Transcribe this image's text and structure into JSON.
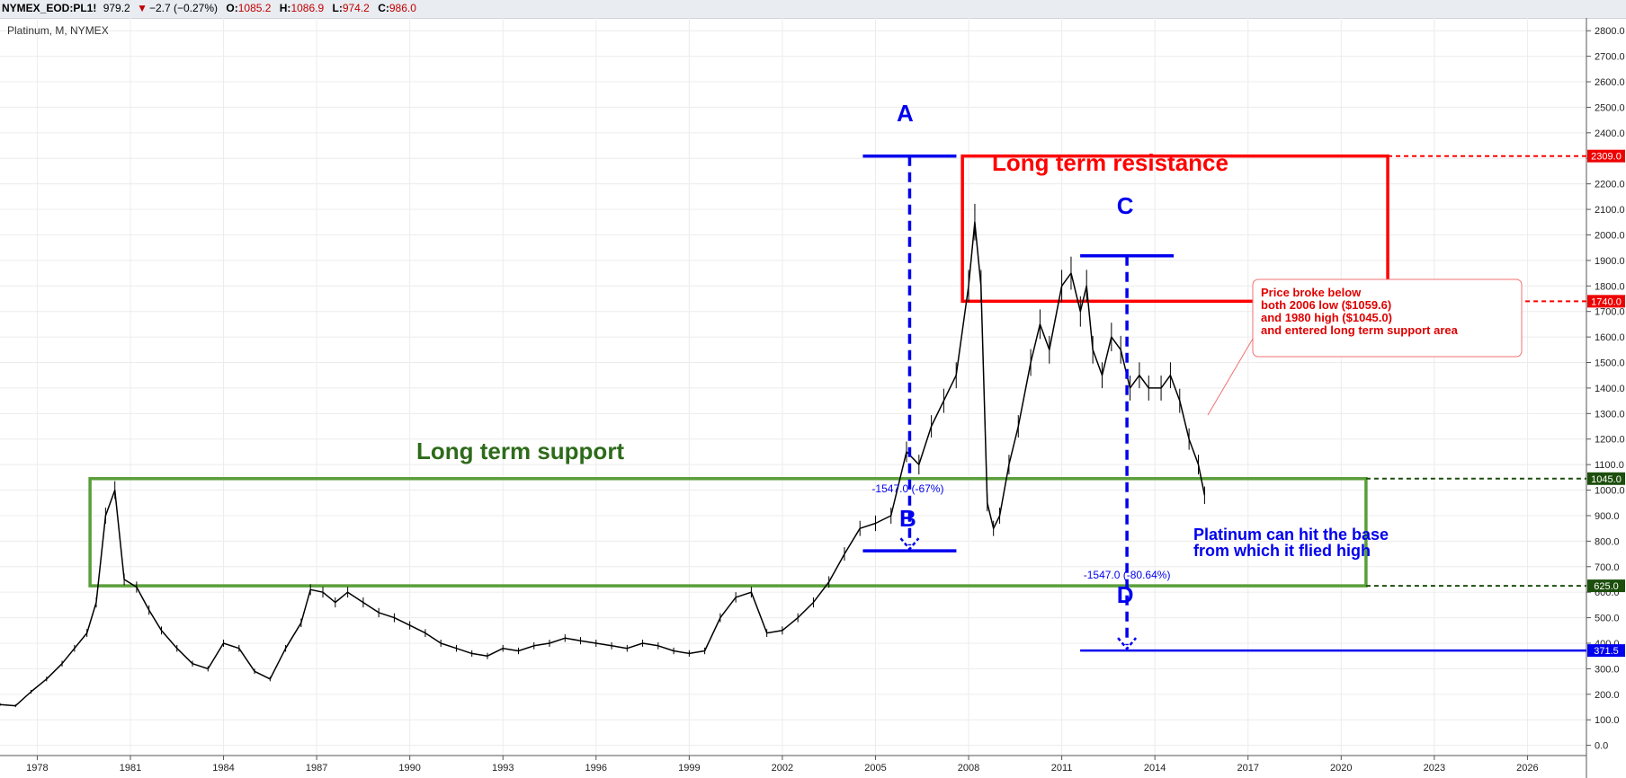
{
  "header": {
    "symbol": "NYMEX_EOD:PL1!",
    "last": "979.2",
    "change_arrow": "▼",
    "change": "−2.7 (−0.27%)",
    "open_label": "O:",
    "open": "1085.2",
    "high_label": "H:",
    "high": "1086.9",
    "low_label": "L:",
    "low": "974.2",
    "close_label": "C:",
    "close": "986.0"
  },
  "chart_data": {
    "type": "line",
    "title": "Platinum, M, NYMEX",
    "xlabel": "",
    "ylabel": "",
    "x_ticks": [
      "1978",
      "1981",
      "1984",
      "1987",
      "1990",
      "1993",
      "1996",
      "1999",
      "2002",
      "2005",
      "2008",
      "2011",
      "2014",
      "2017",
      "2020",
      "2023",
      "2026"
    ],
    "y_ticks": [
      "0.0",
      "100.0",
      "200.0",
      "300.0",
      "400.0",
      "500.0",
      "600.0",
      "700.0",
      "800.0",
      "900.0",
      "1000.0",
      "1100.0",
      "1200.0",
      "1300.0",
      "1400.0",
      "1500.0",
      "1600.0",
      "1700.0",
      "1800.0",
      "1900.0",
      "2000.0",
      "2100.0",
      "2200.0",
      "2300.0",
      "2400.0",
      "2500.0",
      "2600.0",
      "2700.0",
      "2800.0"
    ],
    "xlim": [
      1976.8,
      2027.9
    ],
    "ylim": [
      -40,
      2850
    ],
    "grid": true,
    "series": [
      {
        "x": [
          1976.8,
          1977.3,
          1977.8,
          1978.3,
          1978.8,
          1979.2,
          1979.6,
          1979.9,
          1980.2,
          1980.5,
          1980.8,
          1981.2,
          1981.6,
          1982.0,
          1982.5,
          1983.0,
          1983.5,
          1984.0,
          1984.5,
          1985.0,
          1985.5,
          1986.0,
          1986.5,
          1986.8,
          1987.2,
          1987.6,
          1988.0,
          1988.5,
          1989.0,
          1989.5,
          1990.0,
          1990.5,
          1991.0,
          1991.5,
          1992.0,
          1992.5,
          1993.0,
          1993.5,
          1994.0,
          1994.5,
          1995.0,
          1995.5,
          1996.0,
          1996.5,
          1997.0,
          1997.5,
          1998.0,
          1998.5,
          1999.0,
          1999.5,
          2000.0,
          2000.5,
          2001.0,
          2001.5,
          2002.0,
          2002.5,
          2003.0,
          2003.5,
          2004.0,
          2004.5,
          2005.0,
          2005.5,
          2006.0,
          2006.4,
          2006.8,
          2007.2,
          2007.6,
          2008.0,
          2008.2,
          2008.4,
          2008.6,
          2008.8,
          2009.0,
          2009.3,
          2009.6,
          2010.0,
          2010.3,
          2010.6,
          2011.0,
          2011.3,
          2011.6,
          2011.8,
          2012.0,
          2012.3,
          2012.6,
          2012.9,
          2013.2,
          2013.5,
          2013.8,
          2014.2,
          2014.5,
          2014.8,
          2015.1,
          2015.4,
          2015.6
        ],
        "values": [
          160,
          155,
          210,
          260,
          320,
          380,
          440,
          560,
          900,
          1000,
          650,
          620,
          530,
          450,
          380,
          320,
          300,
          400,
          380,
          290,
          260,
          380,
          480,
          610,
          600,
          560,
          600,
          560,
          520,
          500,
          470,
          440,
          400,
          380,
          360,
          350,
          380,
          370,
          390,
          400,
          420,
          410,
          400,
          390,
          380,
          400,
          390,
          370,
          360,
          370,
          500,
          580,
          600,
          440,
          450,
          500,
          560,
          640,
          750,
          850,
          870,
          900,
          1150,
          1100,
          1250,
          1350,
          1450,
          1800,
          2050,
          1800,
          950,
          850,
          900,
          1100,
          1250,
          1500,
          1650,
          1550,
          1800,
          1850,
          1700,
          1800,
          1550,
          1450,
          1600,
          1550,
          1400,
          1450,
          1400,
          1400,
          1450,
          1350,
          1200,
          1100,
          980
        ]
      }
    ],
    "annotations": {
      "resistance_label": "Long term resistance",
      "support_label": "Long term support",
      "point_a": "A",
      "point_b": "B",
      "point_c": "C",
      "point_d": "D",
      "measure_ab": "-1547.0 (-67%)",
      "measure_cd": "-1547.0 (-80.64%)",
      "callout_lines": [
        "Price broke below",
        "both 2006 low ($1059.6)",
        "and 1980 high ($1045.0)",
        "and entered long term support area"
      ],
      "base_note_lines": [
        "Platinum can hit the base",
        "from which it flied high"
      ]
    },
    "price_badges": {
      "resistance_high": "2309.0",
      "resistance_low": "1740.0",
      "support_high": "1045.0",
      "support_low": "625.0",
      "target": "371.5"
    },
    "levels": {
      "resistance": [
        1740,
        2309
      ],
      "resistance_x": [
        2007.8,
        2021.5
      ],
      "support": [
        625,
        1045
      ],
      "support_x": [
        1979.7,
        2020.8
      ],
      "target": 371.5,
      "a_x": 2006.1,
      "a_y": 2309,
      "b_y": 762,
      "c_x": 2013.1,
      "c_y": 1918,
      "d_y": 371.5
    },
    "colors": {
      "resistance": "#ff0000",
      "support": "#5a9e3a",
      "support_text": "#2d6b1a",
      "measure": "#0000ee",
      "price_line": "#000000",
      "support_badge": "#1c4e0c",
      "resistance_badge": "#ee0000",
      "target_badge": "#0000ee"
    }
  }
}
